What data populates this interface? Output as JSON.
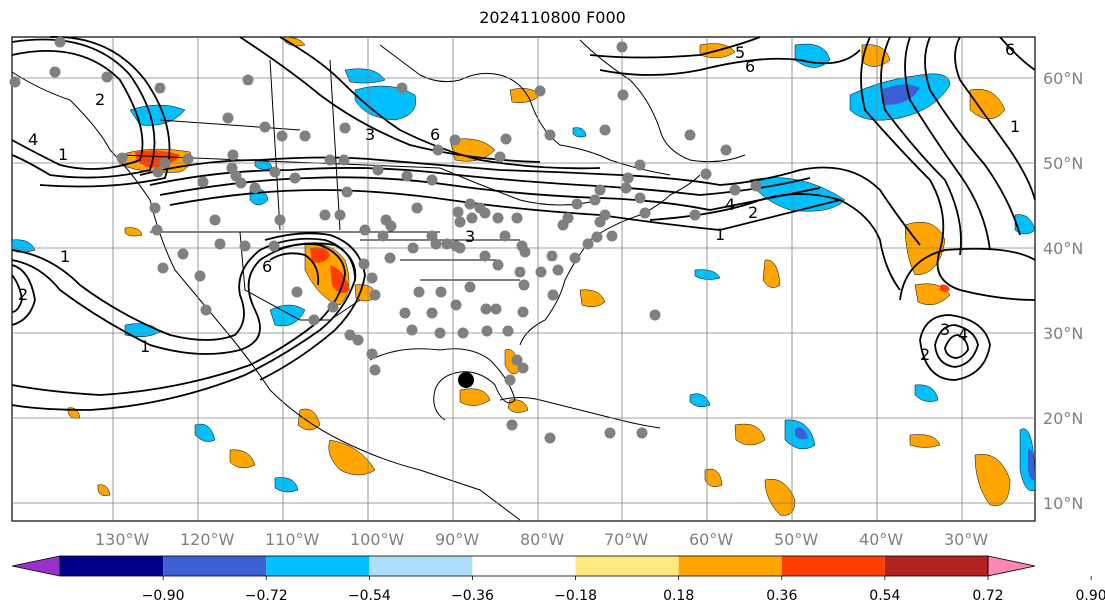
{
  "title": "2024110800 F000",
  "lon_labels": [
    "130°W",
    "120°W",
    "110°W",
    "100°W",
    "90°W",
    "80°W",
    "70°W",
    "60°W",
    "50°W",
    "40°W",
    "30°W"
  ],
  "lat_labels": [
    "60°N",
    "50°N",
    "40°N",
    "30°N",
    "20°N",
    "10°N"
  ],
  "colorbar": {
    "ticks": [
      "−0.90",
      "−0.72",
      "−0.54",
      "−0.36",
      "−0.18",
      "0.18",
      "0.36",
      "0.54",
      "0.72",
      "0.90"
    ],
    "colors": [
      "#9932cc",
      "#00008b",
      "#3d5fd6",
      "#00bfff",
      "#afdefa",
      "#ffffff",
      "#ffe87f",
      "#ffa500",
      "#ff3d00",
      "#b22222",
      "#ff85b3"
    ]
  },
  "contour_labels": [
    "1",
    "2",
    "3",
    "4",
    "5",
    "6"
  ],
  "colors": {
    "land_outline": "#000000",
    "grid": "#808080",
    "station": "#808080",
    "marker": "#000000"
  }
}
